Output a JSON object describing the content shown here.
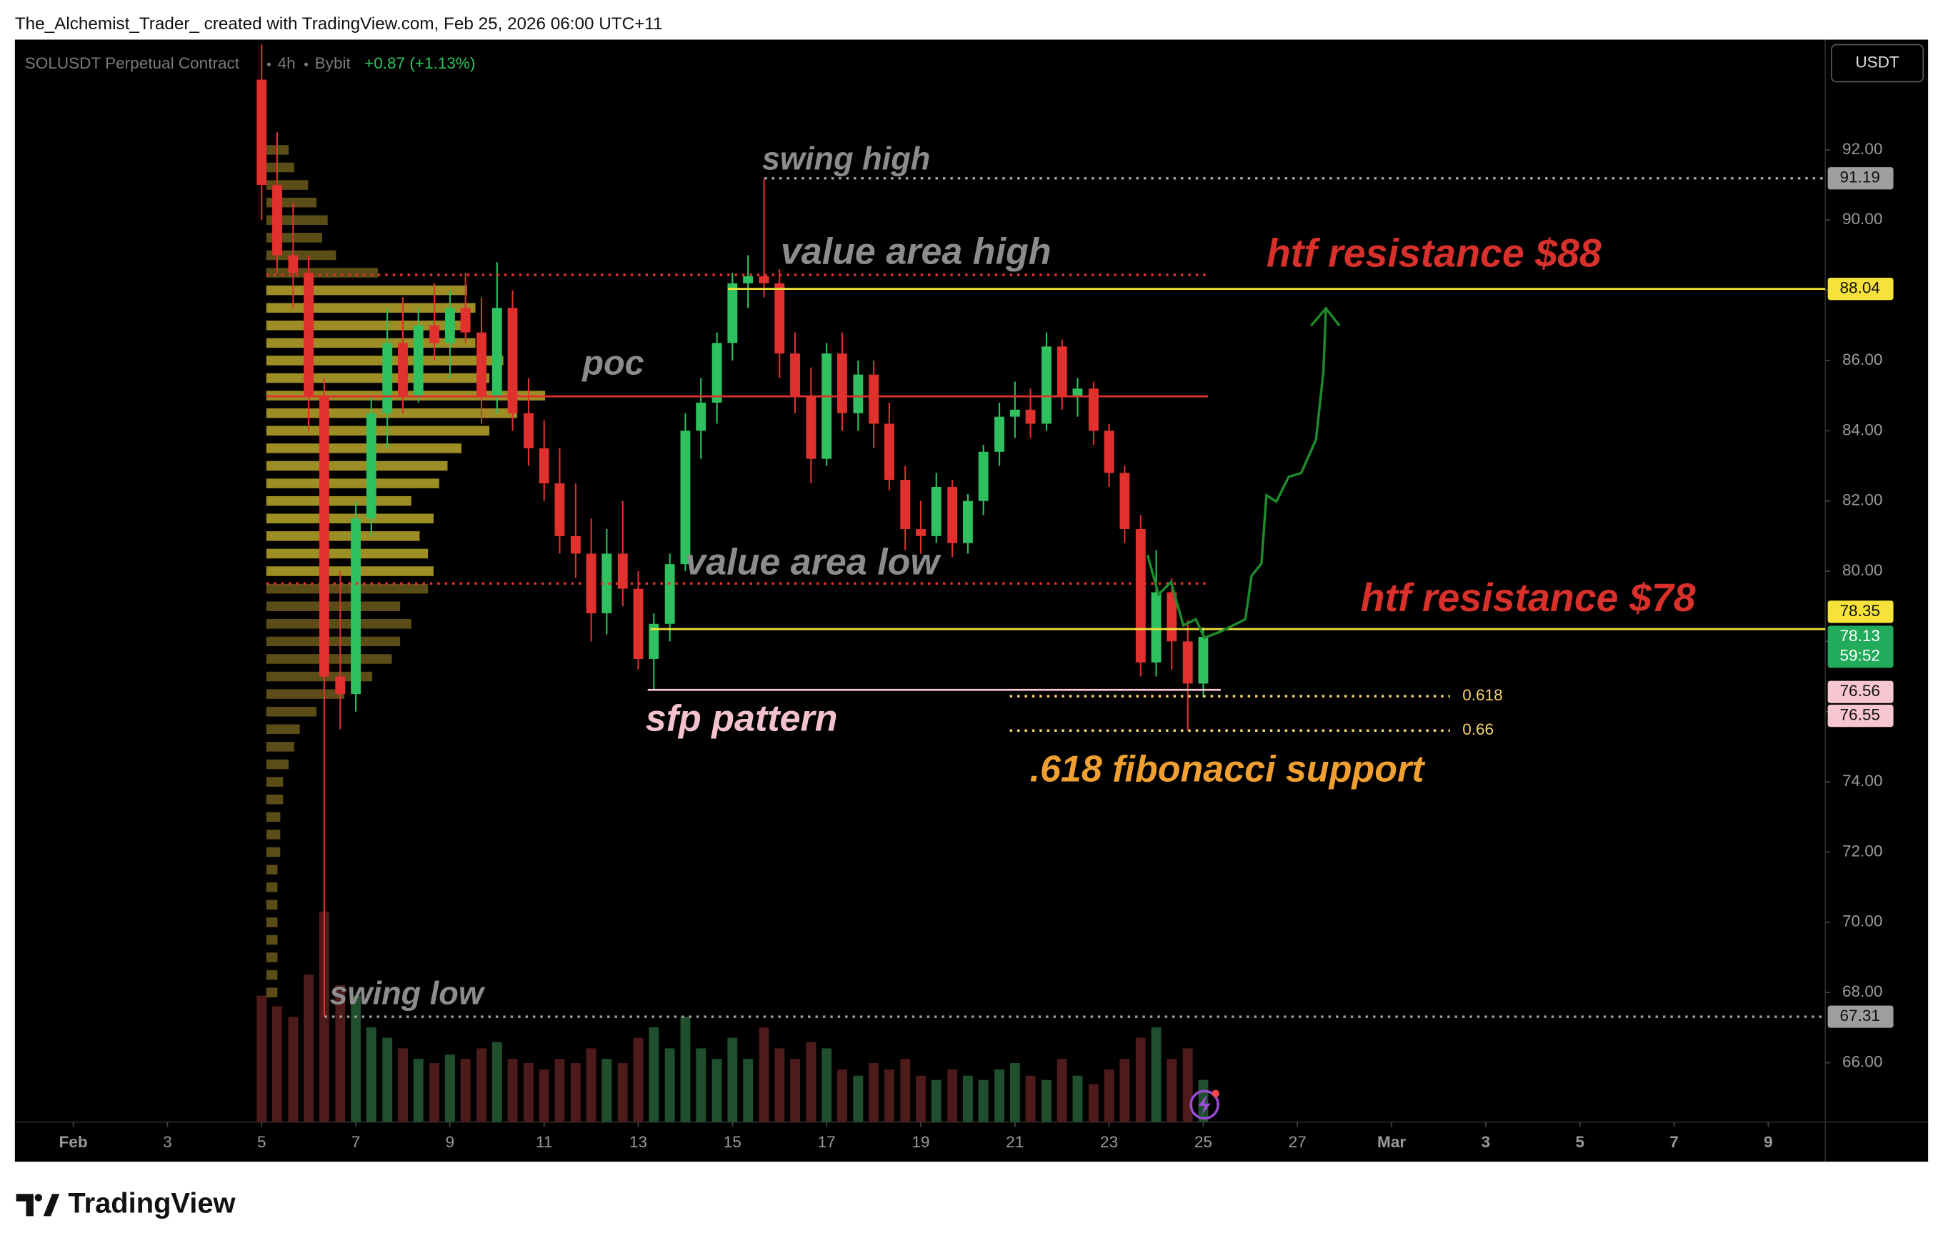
{
  "header": "The_Alchemist_Trader_ created with TradingView.com, Feb 25, 2026 06:00 UTC+11",
  "footer": "TradingView",
  "chart_data": {
    "type": "candlestick",
    "symbol": "SOLUSDT Perpetual Contract",
    "interval": "4h",
    "exchange": "Bybit",
    "change": "+0.87 (+1.13%)",
    "currency": "USDT",
    "xlim": [
      -0.24,
      38.21
    ],
    "ylim": [
      64.31,
      95.14
    ],
    "xticks": [
      {
        "value": 1,
        "label": "Feb"
      },
      3,
      5,
      7,
      9,
      11,
      13,
      15,
      17,
      19,
      21,
      23,
      25,
      27,
      {
        "value": 29,
        "label": "Mar"
      },
      {
        "value": 31,
        "label": "3"
      },
      {
        "value": 33,
        "label": "5"
      },
      {
        "value": 35,
        "label": "7"
      },
      {
        "value": 37,
        "label": "9"
      }
    ],
    "yticks": [
      {
        "value": 66,
        "label": "66.00"
      },
      {
        "value": 68,
        "label": "68.00"
      },
      {
        "value": 70,
        "label": "70.00"
      },
      {
        "value": 72,
        "label": "72.00"
      },
      {
        "value": 74,
        "label": "74.00"
      },
      {
        "value": 76,
        "label": "76.00"
      },
      {
        "value": 78,
        "label": "78.00"
      },
      {
        "value": 80,
        "label": "80.00"
      },
      {
        "value": 82,
        "label": "82.00"
      },
      {
        "value": 84,
        "label": "84.00"
      },
      {
        "value": 86,
        "label": "86.00"
      },
      {
        "value": 88,
        "label": "88.00"
      },
      {
        "value": 90,
        "label": "90.00"
      },
      {
        "value": 92,
        "label": "92.00"
      }
    ],
    "up_color": "#2fc15f",
    "down_color": "#e0312e",
    "volume_up_color": "#1f4f2c",
    "volume_down_color": "#4e1b1b",
    "x": [
      5,
      5.33,
      5.67,
      6,
      6.33,
      6.67,
      7,
      7.33,
      7.67,
      8,
      8.33,
      8.67,
      9,
      9.33,
      9.67,
      10,
      10.33,
      10.67,
      11,
      11.33,
      11.67,
      12,
      12.33,
      12.67,
      13,
      13.33,
      13.67,
      14,
      14.33,
      14.67,
      15,
      15.33,
      15.67,
      16,
      16.33,
      16.67,
      17,
      17.33,
      17.67,
      18,
      18.33,
      18.67,
      19,
      19.33,
      19.67,
      20,
      20.33,
      20.67,
      21,
      21.33,
      21.67,
      22,
      22.33,
      22.67,
      23,
      23.33,
      23.67,
      24,
      24.33,
      24.67,
      25
    ],
    "open": [
      94,
      91,
      89,
      88.5,
      85,
      77,
      76.5,
      81.5,
      84.5,
      86.5,
      85,
      87,
      86.5,
      87.5,
      86.8,
      85,
      87.5,
      84.5,
      83.5,
      82.5,
      81,
      80.5,
      78.8,
      80.5,
      79.5,
      77.5,
      78.5,
      80.2,
      84,
      84.8,
      86.5,
      88.2,
      88.4,
      88.2,
      86.2,
      85,
      83.2,
      86.2,
      84.5,
      85.6,
      84.2,
      82.6,
      81.2,
      81,
      82.4,
      80.8,
      82,
      83.4,
      84.4,
      84.6,
      84.2,
      86.4,
      85,
      85.2,
      84,
      82.8,
      81.2,
      77.4,
      79.4,
      78,
      76.8
    ],
    "high": [
      95,
      92.5,
      90.5,
      89,
      85.5,
      80,
      82,
      85,
      87.5,
      87.8,
      87.5,
      88.2,
      88,
      88.5,
      87.8,
      88.8,
      88,
      85.5,
      84.3,
      83.5,
      82.5,
      81.5,
      81.2,
      82,
      80,
      78.8,
      80.5,
      84.5,
      85.5,
      86.8,
      88.5,
      89,
      91.19,
      88.6,
      86.8,
      85.8,
      86.5,
      86.8,
      86,
      86,
      84.8,
      83,
      82,
      82.8,
      82.6,
      82.2,
      83.6,
      84.8,
      85.4,
      85.2,
      86.8,
      86.6,
      85.5,
      85.4,
      84.2,
      83,
      81.6,
      80.6,
      79.8,
      78.6,
      78.4
    ],
    "low": [
      90,
      88.5,
      87.5,
      84,
      67.31,
      75.5,
      76,
      81,
      83.5,
      84.5,
      84.8,
      86,
      85.5,
      86.5,
      84.2,
      84.5,
      84,
      83,
      82,
      80.5,
      79.8,
      78,
      78.2,
      79,
      77.2,
      76.62,
      78,
      80,
      83.2,
      84.2,
      86,
      87.5,
      87.8,
      85.5,
      84.5,
      82.5,
      83,
      84,
      84,
      83.5,
      82.3,
      80.6,
      80.5,
      80.8,
      80.4,
      80.5,
      81.6,
      83,
      83.8,
      83.8,
      84,
      84.6,
      84.4,
      83.6,
      82.4,
      80.8,
      77,
      77,
      77.2,
      75.46,
      76.4
    ],
    "close": [
      91,
      89,
      88.5,
      85,
      77,
      76.5,
      81.5,
      84.5,
      86.5,
      85,
      87,
      86.5,
      87.5,
      86.8,
      85,
      87.5,
      84.5,
      83.5,
      82.5,
      81,
      80.5,
      78.8,
      80.5,
      79.5,
      77.5,
      78.5,
      80.2,
      84,
      84.8,
      86.5,
      88.2,
      88.4,
      88.2,
      86.2,
      85,
      83.2,
      86.2,
      84.5,
      85.6,
      84.2,
      82.6,
      81.2,
      81,
      82.4,
      80.8,
      82,
      83.4,
      84.4,
      84.6,
      84.2,
      86.4,
      85,
      85.2,
      84,
      82.8,
      81.2,
      77.4,
      79.4,
      78,
      76.8,
      78.13
    ],
    "volume_ylim": [
      0,
      100
    ],
    "volume": [
      60,
      55,
      50,
      70,
      100,
      65,
      60,
      45,
      40,
      35,
      30,
      28,
      32,
      30,
      35,
      38,
      30,
      28,
      25,
      30,
      28,
      35,
      30,
      28,
      40,
      45,
      35,
      50,
      35,
      30,
      40,
      30,
      45,
      35,
      30,
      38,
      35,
      25,
      22,
      28,
      25,
      30,
      22,
      20,
      25,
      22,
      20,
      25,
      28,
      22,
      20,
      30,
      22,
      18,
      25,
      30,
      40,
      45,
      30,
      35,
      20
    ],
    "profile": {
      "start": 5.1,
      "xlim": [
        0,
        100
      ],
      "inside_color": "#b8a62c",
      "outside_color": "#6a5b1c",
      "prices": [
        68,
        68.5,
        69,
        69.5,
        70,
        70.5,
        71,
        71.5,
        72,
        72.5,
        73,
        73.5,
        74,
        74.5,
        75,
        75.5,
        76,
        76.5,
        77,
        77.5,
        78,
        78.5,
        79,
        79.5,
        80,
        80.5,
        81,
        81.5,
        82,
        82.5,
        83,
        83.5,
        84,
        84.5,
        85,
        85.5,
        86,
        86.5,
        87,
        87.5,
        88,
        88.5,
        89,
        89.5,
        90,
        90.5,
        91,
        91.5,
        92
      ],
      "volumes": [
        4,
        4,
        4,
        4,
        4,
        4,
        4,
        4,
        5,
        5,
        5,
        6,
        6,
        8,
        10,
        12,
        18,
        28,
        38,
        45,
        48,
        52,
        48,
        58,
        60,
        58,
        55,
        60,
        52,
        62,
        65,
        70,
        80,
        90,
        100,
        80,
        85,
        75,
        70,
        75,
        72,
        40,
        25,
        20,
        22,
        18,
        15,
        10,
        8
      ]
    },
    "levels": [
      {
        "price": 91.19,
        "from": 15.68,
        "to": 38.21,
        "color": "#a0a0a0",
        "style": "dotted"
      },
      {
        "price": 88.44,
        "from": 5.1,
        "to": 25.1,
        "color": "#e0322c",
        "style": "dotted"
      },
      {
        "price": 88.04,
        "from": 14.9,
        "to": 38.21,
        "color": "#f5e33b",
        "style": "solid"
      },
      {
        "price": 84.98,
        "from": 5.1,
        "to": 25.1,
        "color": "#e0322c",
        "style": "solid"
      },
      {
        "price": 79.65,
        "from": 5.1,
        "to": 25.1,
        "color": "#e0322c",
        "style": "dotted"
      },
      {
        "price": 78.35,
        "from": 13.26,
        "to": 38.21,
        "color": "#f5e33b",
        "style": "solid"
      },
      {
        "price": 76.62,
        "from": 13.2,
        "to": 25.37,
        "color": "#f7c6d0",
        "style": "solid"
      },
      {
        "price": 76.44,
        "from": 20.89,
        "to": 30.24,
        "color": "#f5d36a",
        "style": "dotted",
        "label": "0.618"
      },
      {
        "price": 75.46,
        "from": 20.89,
        "to": 30.24,
        "color": "#f5d36a",
        "style": "dotted",
        "label": "0.66"
      },
      {
        "price": 67.31,
        "from": 6.34,
        "to": 38.21,
        "color": "#a0a0a0",
        "style": "dotted"
      }
    ],
    "price_tags": [
      {
        "value": 91.19,
        "bg": "#9e9e9e",
        "fg": "#111111"
      },
      {
        "value": 88.04,
        "bg": "#f5e33b",
        "fg": "#111111"
      },
      {
        "value": 78.35,
        "bg": "#f5e33b",
        "fg": "#111111"
      },
      {
        "value": 78.13,
        "bg": "#22ab5a",
        "fg": "#ffffff",
        "countdown": "59:52"
      },
      {
        "value": 76.56,
        "bg": "#f7c6d0",
        "fg": "#111111"
      },
      {
        "value": 76.55,
        "bg": "#f7c6d0",
        "fg": "#111111"
      },
      {
        "value": 67.31,
        "bg": "#9e9e9e",
        "fg": "#111111"
      }
    ],
    "annotations": [
      {
        "text": "swing high",
        "color": "#8c8c8c"
      },
      {
        "text": "value area high",
        "color": "#8c8c8c"
      },
      {
        "text": "poc",
        "color": "#8c8c8c"
      },
      {
        "text": "value area low",
        "color": "#8c8c8c"
      },
      {
        "text": "sfp pattern",
        "color": "#f4c2cc"
      },
      {
        "text": ".618 fibonacci support",
        "color": "#f0a030"
      },
      {
        "text": "htf resistance $88",
        "color": "#d8302a"
      },
      {
        "text": "htf resistance $78",
        "color": "#d8302a"
      },
      {
        "text": "swing low",
        "color": "#8c8c8c"
      }
    ]
  }
}
